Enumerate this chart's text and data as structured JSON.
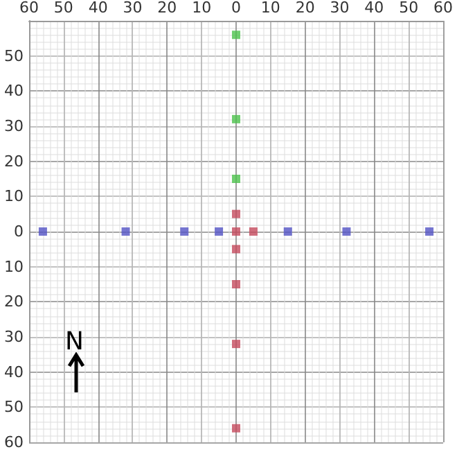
{
  "chart_data": {
    "type": "scatter",
    "marker": "square",
    "grid": true,
    "tick_labels": true,
    "xlim": [
      -60,
      60
    ],
    "ylim": [
      -60,
      60
    ],
    "xticks": [
      {
        "value": -60,
        "label": "60"
      },
      {
        "value": -50,
        "label": "50"
      },
      {
        "value": -40,
        "label": "40"
      },
      {
        "value": -30,
        "label": "30"
      },
      {
        "value": -20,
        "label": "20"
      },
      {
        "value": -10,
        "label": "10"
      },
      0,
      10,
      20,
      30,
      40,
      50,
      60
    ],
    "yticks": [
      {
        "value": -60,
        "label": "60"
      },
      {
        "value": -50,
        "label": "50"
      },
      {
        "value": -40,
        "label": "40"
      },
      {
        "value": -30,
        "label": "30"
      },
      {
        "value": -20,
        "label": "20"
      },
      {
        "value": -10,
        "label": "10"
      },
      0,
      10,
      20,
      30,
      40,
      50,
      {
        "value": 60,
        "label": null
      }
    ],
    "annotations": [
      "N"
    ],
    "series": [
      {
        "color": "#5252c4",
        "x": [
          -56,
          -32,
          -15,
          -5,
          15,
          32,
          56
        ],
        "values": [
          0,
          0,
          0,
          0,
          0,
          0,
          0
        ]
      },
      {
        "color": "#4cc24c",
        "x": [
          0,
          0,
          0
        ],
        "values": [
          15,
          32,
          56
        ]
      },
      {
        "color": "#c44a5c",
        "x": [
          0,
          5,
          0,
          0,
          0,
          0,
          0
        ],
        "values": [
          0,
          0,
          5,
          -5,
          -15,
          -32,
          -56
        ]
      }
    ]
  }
}
